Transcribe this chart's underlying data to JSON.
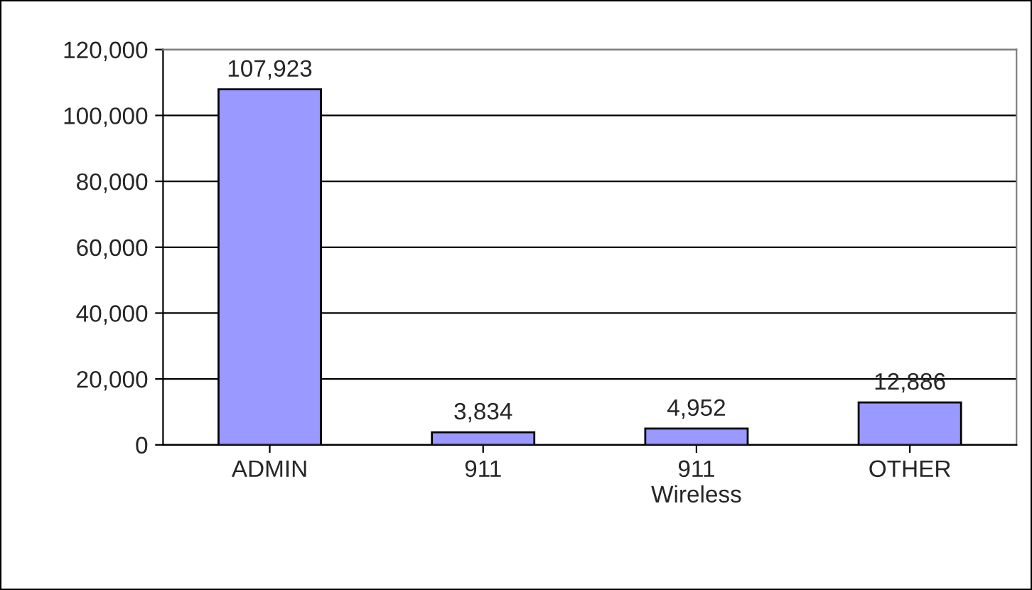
{
  "chart_data": {
    "type": "bar",
    "categories": [
      "ADMIN",
      "911",
      "911\nWireless",
      "OTHER"
    ],
    "values": [
      107923,
      3834,
      4952,
      12886
    ],
    "value_labels": [
      "107,923",
      "3,834",
      "4,952",
      "12,886"
    ],
    "color": "#9999ff",
    "ylim": [
      0,
      120000
    ],
    "yticks": [
      0,
      {
        "value": 20000,
        "label": "20,000"
      },
      {
        "value": 40000,
        "label": "40,000"
      },
      {
        "value": 60000,
        "label": "60,000"
      },
      {
        "value": 80000,
        "label": "80,000"
      },
      {
        "value": 100000,
        "label": "100,000"
      },
      {
        "value": 120000,
        "label": "120,000"
      }
    ],
    "grid": "y",
    "legend": false
  }
}
